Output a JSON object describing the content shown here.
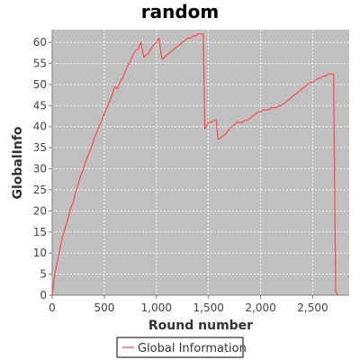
{
  "colors": {
    "plot_background": "#c0c0c0",
    "series_line": "#ff4a4a",
    "grid": "#ffffff",
    "axis": "#808080"
  },
  "chart_data": {
    "type": "line",
    "title": "random",
    "xlabel": "Round number",
    "ylabel": "GlobalInfo",
    "xlim": [
      0,
      2850
    ],
    "ylim": [
      0,
      63
    ],
    "x_ticks": [
      0,
      500,
      1000,
      1500,
      2000,
      2500
    ],
    "x_tick_labels": [
      "0",
      "500",
      "1,000",
      "1,500",
      "2,000",
      "2,500"
    ],
    "y_ticks": [
      0,
      5,
      10,
      15,
      20,
      25,
      30,
      35,
      40,
      45,
      50,
      55,
      60
    ],
    "y_tick_labels": [
      "0",
      "5",
      "10",
      "15",
      "20",
      "25",
      "30",
      "35",
      "40",
      "45",
      "50",
      "55",
      "60"
    ],
    "grid": true,
    "legend_position": "bottom-center",
    "series": [
      {
        "name": "Global Information",
        "color": "#ff4a4a",
        "x": [
          0,
          25,
          50,
          75,
          100,
          125,
          150,
          175,
          200,
          225,
          250,
          275,
          300,
          325,
          350,
          375,
          400,
          425,
          450,
          475,
          500,
          525,
          550,
          575,
          600,
          625,
          650,
          675,
          700,
          725,
          750,
          775,
          800,
          825,
          850,
          875,
          880,
          900,
          925,
          950,
          975,
          1000,
          1025,
          1050,
          1060,
          1080,
          1100,
          1125,
          1150,
          1175,
          1200,
          1225,
          1250,
          1275,
          1300,
          1325,
          1350,
          1375,
          1400,
          1425,
          1450,
          1465,
          1480,
          1500,
          1525,
          1550,
          1575,
          1590,
          1600,
          1625,
          1650,
          1675,
          1700,
          1725,
          1750,
          1775,
          1800,
          1825,
          1850,
          1875,
          1900,
          1925,
          1950,
          1975,
          2000,
          2025,
          2050,
          2075,
          2100,
          2125,
          2150,
          2175,
          2200,
          2225,
          2250,
          2275,
          2300,
          2325,
          2350,
          2375,
          2400,
          2425,
          2450,
          2475,
          2500,
          2525,
          2550,
          2575,
          2600,
          2625,
          2650,
          2675,
          2700,
          2720,
          2740
        ],
        "y": [
          0,
          5,
          8,
          11,
          14,
          16,
          18,
          20.5,
          22,
          24.5,
          26.5,
          28.5,
          30,
          32,
          33.5,
          35,
          37,
          38.5,
          40,
          41.5,
          43,
          44.5,
          46,
          47.5,
          49.5,
          49,
          50.5,
          51.5,
          53,
          54.5,
          55.5,
          57,
          58,
          58.5,
          60,
          57,
          56.5,
          57,
          57.5,
          58.5,
          59.5,
          60,
          61,
          56.5,
          56,
          56.5,
          57,
          57.5,
          58,
          58.5,
          59,
          59.5,
          60,
          60.5,
          61,
          61,
          61.5,
          61.5,
          62,
          62,
          62,
          39.5,
          40,
          41,
          41,
          41.5,
          41.5,
          37,
          37,
          37.5,
          38,
          38.5,
          39.5,
          40,
          40.5,
          41,
          41,
          41,
          41.5,
          41.5,
          42,
          42.5,
          43,
          43.5,
          43.5,
          44,
          44,
          44,
          44.5,
          44.5,
          44.5,
          45,
          45,
          45.5,
          46,
          46.5,
          47,
          47.5,
          48,
          48.5,
          49,
          49.5,
          50,
          50.5,
          50.5,
          51,
          51.5,
          51.5,
          52,
          52,
          52.5,
          52.5,
          52.5,
          1,
          0
        ]
      }
    ]
  }
}
